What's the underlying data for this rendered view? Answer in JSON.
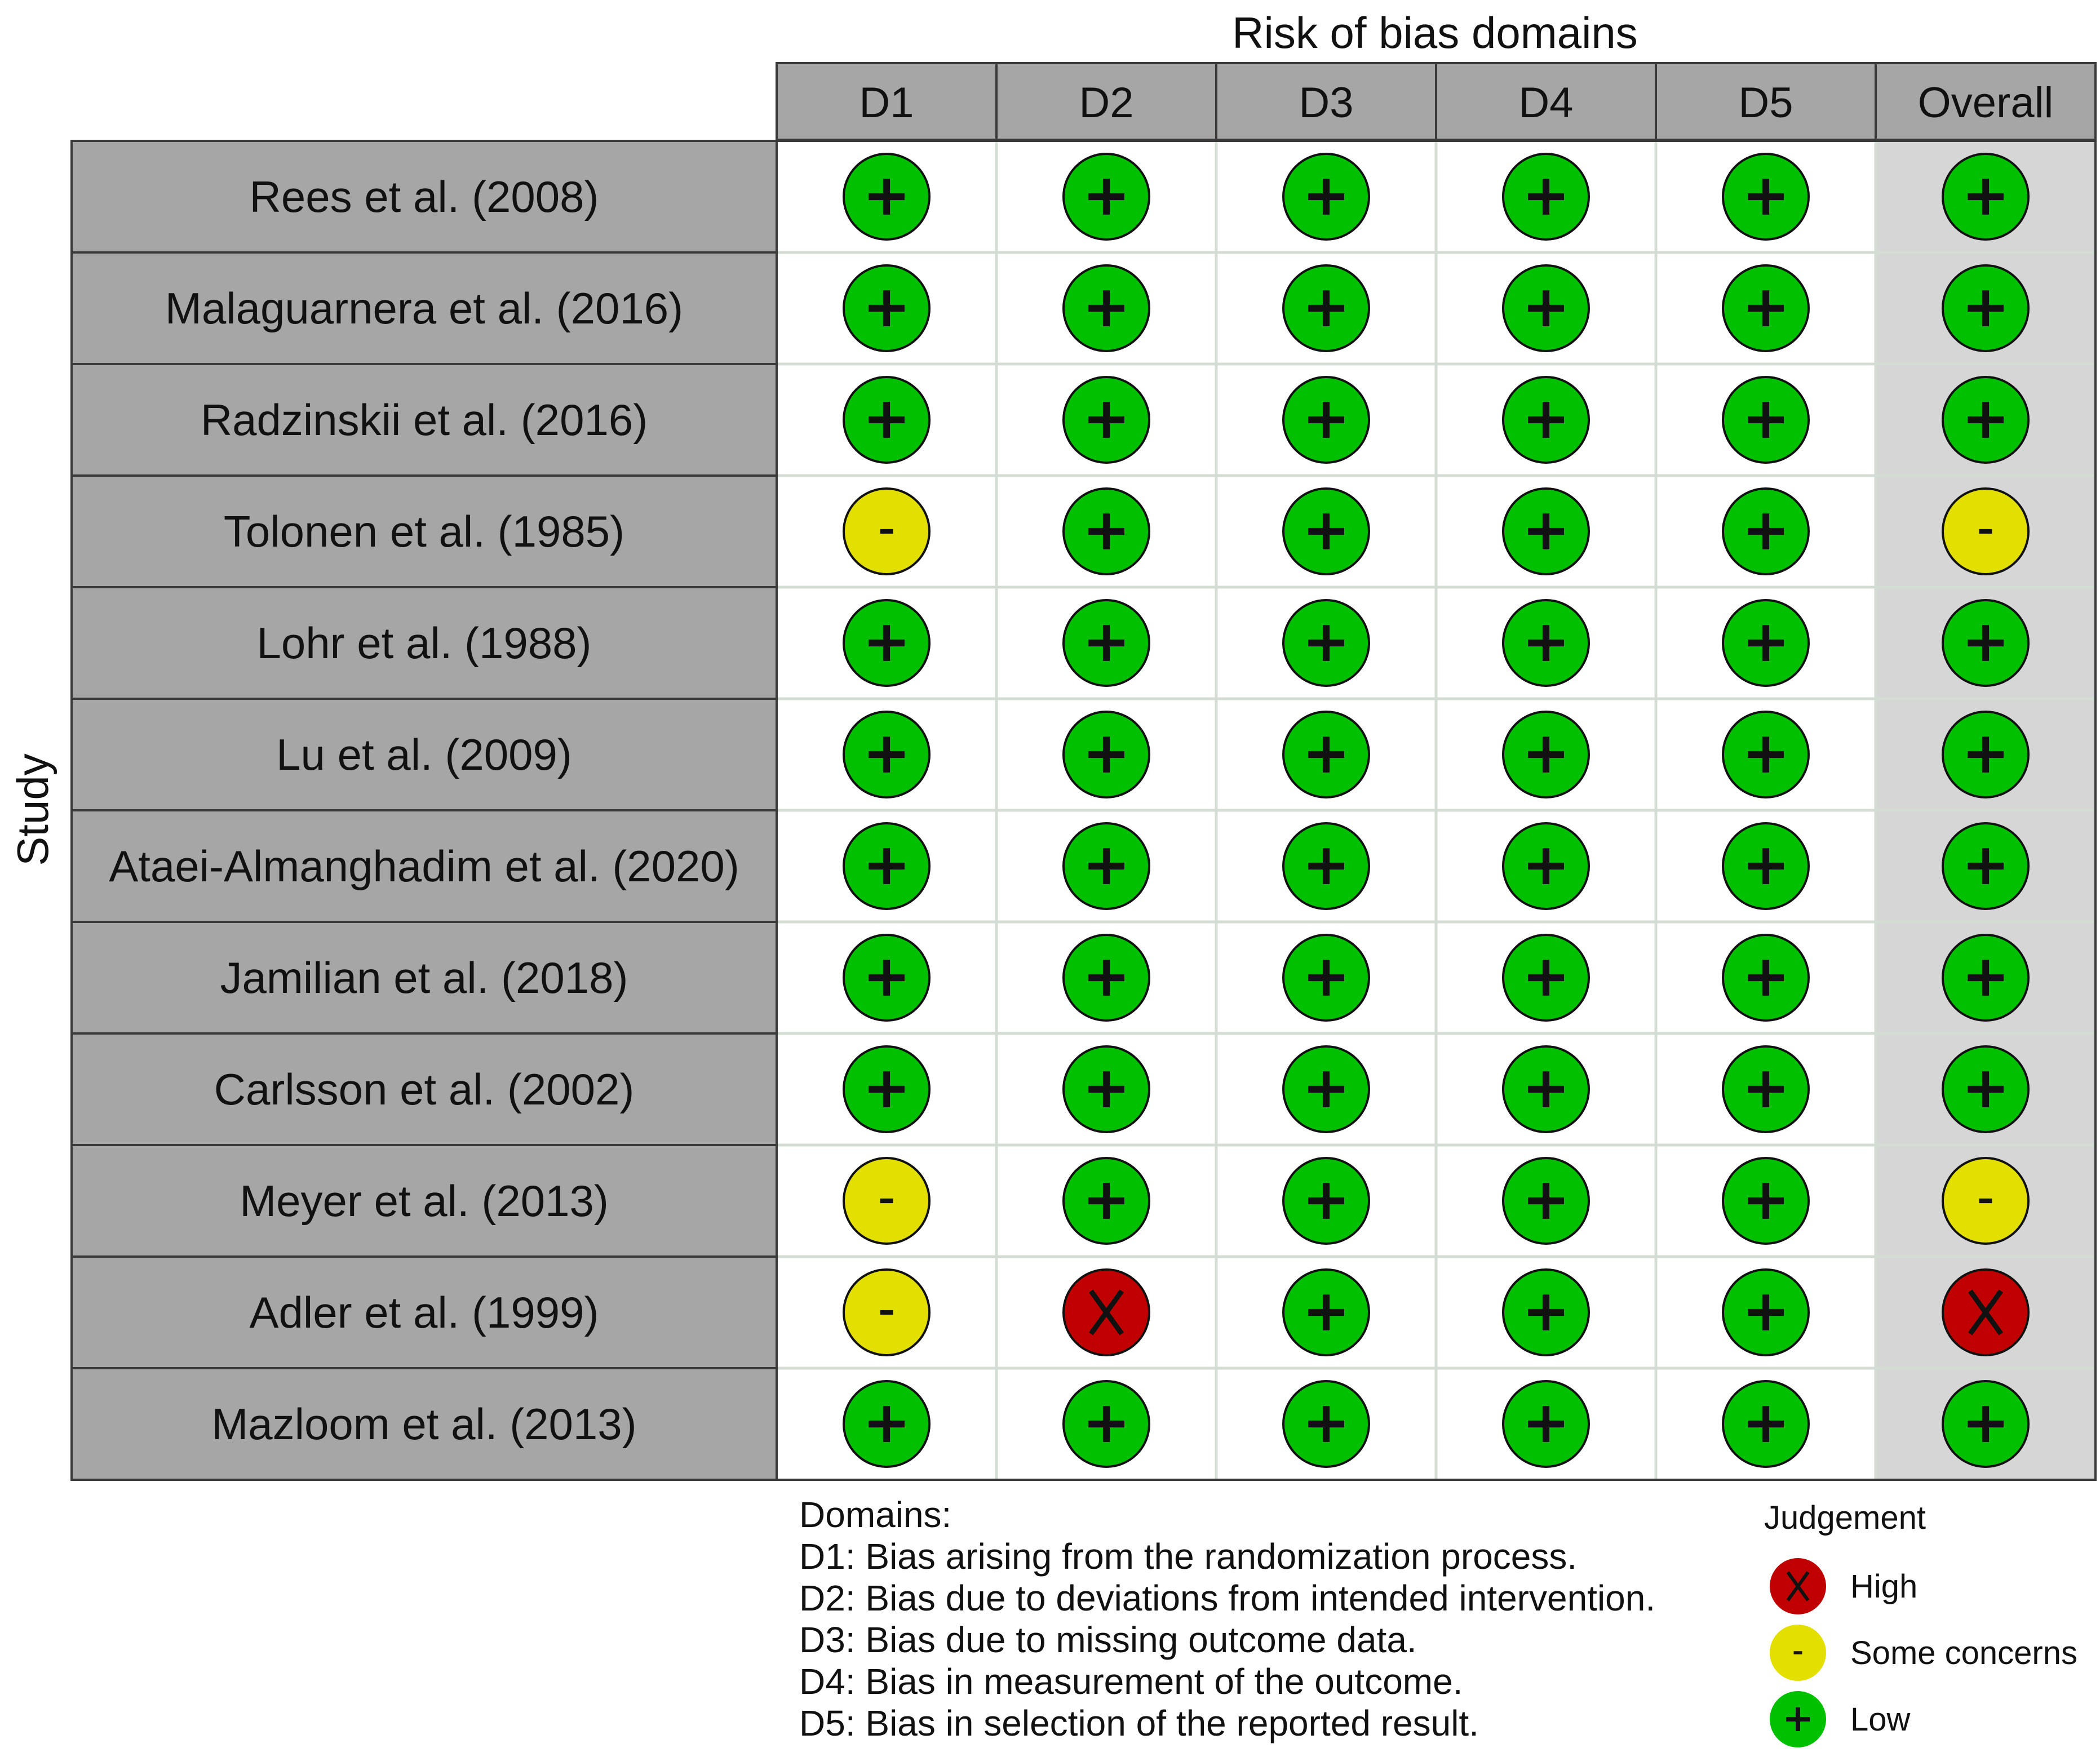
{
  "chart_data": {
    "type": "table",
    "title": "Risk of bias domains",
    "row_axis_label": "Study",
    "columns": [
      "D1",
      "D2",
      "D3",
      "D4",
      "D5",
      "Overall"
    ],
    "rows": [
      {
        "study": "Rees et al. (2008)",
        "judgements": [
          "Low",
          "Low",
          "Low",
          "Low",
          "Low",
          "Low"
        ]
      },
      {
        "study": "Malaguarnera et al. (2016)",
        "judgements": [
          "Low",
          "Low",
          "Low",
          "Low",
          "Low",
          "Low"
        ]
      },
      {
        "study": "Radzinskii et al. (2016)",
        "judgements": [
          "Low",
          "Low",
          "Low",
          "Low",
          "Low",
          "Low"
        ]
      },
      {
        "study": "Tolonen et al. (1985)",
        "judgements": [
          "Some concerns",
          "Low",
          "Low",
          "Low",
          "Low",
          "Some concerns"
        ]
      },
      {
        "study": "Lohr et al. (1988)",
        "judgements": [
          "Low",
          "Low",
          "Low",
          "Low",
          "Low",
          "Low"
        ]
      },
      {
        "study": "Lu et al. (2009)",
        "judgements": [
          "Low",
          "Low",
          "Low",
          "Low",
          "Low",
          "Low"
        ]
      },
      {
        "study": "Ataei-Almanghadim et al. (2020)",
        "judgements": [
          "Low",
          "Low",
          "Low",
          "Low",
          "Low",
          "Low"
        ]
      },
      {
        "study": "Jamilian et al. (2018)",
        "judgements": [
          "Low",
          "Low",
          "Low",
          "Low",
          "Low",
          "Low"
        ]
      },
      {
        "study": "Carlsson et al. (2002)",
        "judgements": [
          "Low",
          "Low",
          "Low",
          "Low",
          "Low",
          "Low"
        ]
      },
      {
        "study": "Meyer et al. (2013)",
        "judgements": [
          "Some concerns",
          "Low",
          "Low",
          "Low",
          "Low",
          "Some concerns"
        ]
      },
      {
        "study": "Adler et al. (1999)",
        "judgements": [
          "Some concerns",
          "High",
          "Low",
          "Low",
          "Low",
          "High"
        ]
      },
      {
        "study": "Mazloom et al. (2013)",
        "judgements": [
          "Low",
          "Low",
          "Low",
          "Low",
          "Low",
          "Low"
        ]
      }
    ],
    "domains_heading": "Domains:",
    "domain_descriptions": [
      "D1: Bias arising from the randomization process.",
      "D2: Bias due to deviations from intended intervention.",
      "D3: Bias due to missing outcome data.",
      "D4: Bias in measurement of the outcome.",
      "D5: Bias in selection of the reported result."
    ],
    "legend": {
      "title": "Judgement",
      "placement": "bottom-right",
      "entries": [
        {
          "label": "High",
          "symbol": "X",
          "color": "#C00000"
        },
        {
          "label": "Some concerns",
          "symbol": "-",
          "color": "#E3DF00"
        },
        {
          "label": "Low",
          "symbol": "+",
          "color": "#00C000"
        }
      ]
    },
    "colors": {
      "header_fill": "#A6A6A6",
      "overall_column_fill": "#D6D6D6",
      "cell_fill": "#FFFFFF",
      "cell_grid": "#D3DDD3",
      "border": "#3A3A3A"
    }
  }
}
